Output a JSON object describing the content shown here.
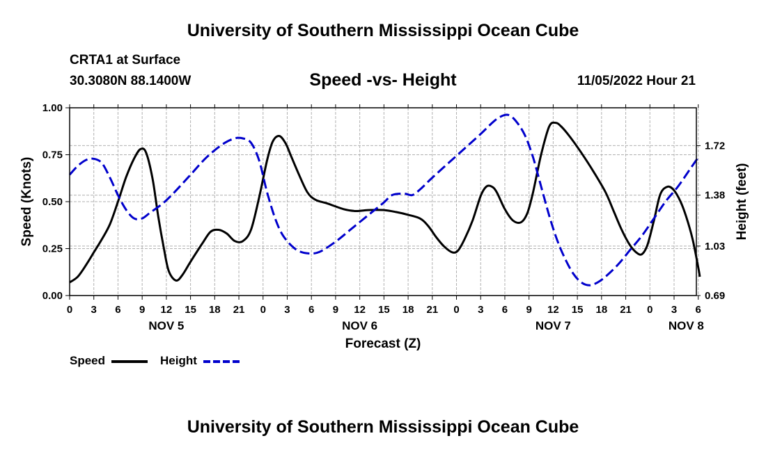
{
  "header": {
    "org_title": "University of Southern Mississippi Ocean Cube",
    "station": "CRTA1 at Surface",
    "coordinates": "30.3080N  88.1400W",
    "chart_title": "Speed -vs- Height",
    "datetime": "11/05/2022 Hour 21"
  },
  "footer": {
    "org_title": "University of Southern Mississippi Ocean Cube"
  },
  "legend": {
    "speed_label": "Speed",
    "height_label": "Height"
  },
  "colors": {
    "speed": "#000000",
    "height": "#0000cc",
    "grid": "#b0b0b0"
  },
  "chart_data": {
    "type": "line",
    "title": "Speed -vs- Height",
    "xlabel": "Forecast (Z)",
    "ylabel": "Speed (Knots)",
    "y2label": "Height (feet)",
    "x_range_hours": [
      0,
      81
    ],
    "x_ticks": [
      {
        "hour": 0,
        "label": "0"
      },
      {
        "hour": 3,
        "label": "3"
      },
      {
        "hour": 6,
        "label": "6"
      },
      {
        "hour": 9,
        "label": "9"
      },
      {
        "hour": 12,
        "label": "12"
      },
      {
        "hour": 15,
        "label": "15"
      },
      {
        "hour": 18,
        "label": "18"
      },
      {
        "hour": 21,
        "label": "21"
      },
      {
        "hour": 24,
        "label": "0"
      },
      {
        "hour": 27,
        "label": "3"
      },
      {
        "hour": 30,
        "label": "6"
      },
      {
        "hour": 33,
        "label": "9"
      },
      {
        "hour": 36,
        "label": "12"
      },
      {
        "hour": 39,
        "label": "15"
      },
      {
        "hour": 42,
        "label": "18"
      },
      {
        "hour": 45,
        "label": "21"
      },
      {
        "hour": 48,
        "label": "0"
      },
      {
        "hour": 51,
        "label": "3"
      },
      {
        "hour": 54,
        "label": "6"
      },
      {
        "hour": 57,
        "label": "9"
      },
      {
        "hour": 60,
        "label": "12"
      },
      {
        "hour": 63,
        "label": "15"
      },
      {
        "hour": 66,
        "label": "18"
      },
      {
        "hour": 69,
        "label": "21"
      },
      {
        "hour": 72,
        "label": "0"
      },
      {
        "hour": 75,
        "label": "3"
      },
      {
        "hour": 78,
        "label": "6"
      }
    ],
    "day_labels": [
      {
        "hour": 12,
        "label": "NOV 5"
      },
      {
        "hour": 36,
        "label": "NOV 6"
      },
      {
        "hour": 60,
        "label": "NOV 7"
      },
      {
        "hour": 76.5,
        "label": "NOV 8"
      }
    ],
    "ylim": [
      0,
      1.0
    ],
    "y_ticks": [
      "0.00",
      "0.25",
      "0.50",
      "0.75",
      "1.00"
    ],
    "y2lim": [
      0.69,
      1.98
    ],
    "y2_ticks": [
      "0.69",
      "1.03",
      "1.38",
      "1.72"
    ],
    "grid": true,
    "series": [
      {
        "name": "Speed",
        "axis": "left",
        "style": "solid",
        "points": [
          [
            0,
            0.07
          ],
          [
            1,
            0.1
          ],
          [
            2,
            0.16
          ],
          [
            3,
            0.23
          ],
          [
            4,
            0.3
          ],
          [
            5,
            0.38
          ],
          [
            6,
            0.5
          ],
          [
            7,
            0.63
          ],
          [
            8,
            0.73
          ],
          [
            8.8,
            0.78
          ],
          [
            9.5,
            0.76
          ],
          [
            10.3,
            0.62
          ],
          [
            11,
            0.42
          ],
          [
            11.7,
            0.25
          ],
          [
            12.3,
            0.13
          ],
          [
            13.2,
            0.08
          ],
          [
            14,
            0.11
          ],
          [
            15,
            0.18
          ],
          [
            16.5,
            0.28
          ],
          [
            17.5,
            0.34
          ],
          [
            18.5,
            0.35
          ],
          [
            19.5,
            0.33
          ],
          [
            20.5,
            0.29
          ],
          [
            21.5,
            0.29
          ],
          [
            22.5,
            0.35
          ],
          [
            23.5,
            0.52
          ],
          [
            24.5,
            0.72
          ],
          [
            25.2,
            0.82
          ],
          [
            26,
            0.85
          ],
          [
            26.8,
            0.81
          ],
          [
            27.5,
            0.74
          ],
          [
            28.5,
            0.64
          ],
          [
            29.5,
            0.55
          ],
          [
            30.5,
            0.51
          ],
          [
            32,
            0.49
          ],
          [
            34,
            0.46
          ],
          [
            35.5,
            0.45
          ],
          [
            37,
            0.455
          ],
          [
            39,
            0.455
          ],
          [
            40.5,
            0.445
          ],
          [
            42,
            0.43
          ],
          [
            43.5,
            0.41
          ],
          [
            44.5,
            0.37
          ],
          [
            45.5,
            0.31
          ],
          [
            46.5,
            0.26
          ],
          [
            47.5,
            0.23
          ],
          [
            48.2,
            0.24
          ],
          [
            49,
            0.3
          ],
          [
            50,
            0.4
          ],
          [
            51,
            0.53
          ],
          [
            51.7,
            0.58
          ],
          [
            52.4,
            0.58
          ],
          [
            53,
            0.55
          ],
          [
            54,
            0.46
          ],
          [
            55,
            0.4
          ],
          [
            56,
            0.39
          ],
          [
            56.8,
            0.44
          ],
          [
            57.5,
            0.55
          ],
          [
            58.5,
            0.75
          ],
          [
            59.5,
            0.9
          ],
          [
            60.3,
            0.92
          ],
          [
            61,
            0.9
          ],
          [
            62,
            0.85
          ],
          [
            63.5,
            0.76
          ],
          [
            65,
            0.66
          ],
          [
            66.5,
            0.55
          ],
          [
            67.5,
            0.45
          ],
          [
            68.5,
            0.35
          ],
          [
            69.5,
            0.27
          ],
          [
            70.3,
            0.23
          ],
          [
            71,
            0.22
          ],
          [
            71.7,
            0.27
          ],
          [
            72.5,
            0.4
          ],
          [
            73.3,
            0.54
          ],
          [
            74.2,
            0.58
          ],
          [
            75,
            0.56
          ],
          [
            75.8,
            0.5
          ],
          [
            76.5,
            0.42
          ],
          [
            77.3,
            0.3
          ],
          [
            78,
            0.15
          ],
          [
            78.2,
            0.1
          ]
        ]
      },
      {
        "name": "Height",
        "axis": "right",
        "style": "dashed",
        "points": [
          [
            0,
            1.52
          ],
          [
            1,
            1.58
          ],
          [
            2,
            1.62
          ],
          [
            3,
            1.63
          ],
          [
            4,
            1.6
          ],
          [
            5,
            1.5
          ],
          [
            6,
            1.38
          ],
          [
            7,
            1.28
          ],
          [
            8,
            1.22
          ],
          [
            9,
            1.22
          ],
          [
            10,
            1.26
          ],
          [
            11.5,
            1.32
          ],
          [
            13,
            1.4
          ],
          [
            15,
            1.52
          ],
          [
            17,
            1.64
          ],
          [
            19,
            1.73
          ],
          [
            20.5,
            1.77
          ],
          [
            21.5,
            1.77
          ],
          [
            22.5,
            1.74
          ],
          [
            23.5,
            1.62
          ],
          [
            24.5,
            1.4
          ],
          [
            25.5,
            1.22
          ],
          [
            26.5,
            1.1
          ],
          [
            28,
            1.01
          ],
          [
            29.5,
            0.98
          ],
          [
            31,
            0.99
          ],
          [
            33,
            1.06
          ],
          [
            35,
            1.15
          ],
          [
            37,
            1.24
          ],
          [
            39,
            1.33
          ],
          [
            40,
            1.38
          ],
          [
            41.5,
            1.39
          ],
          [
            42.5,
            1.38
          ],
          [
            43.5,
            1.42
          ],
          [
            45,
            1.5
          ],
          [
            47,
            1.6
          ],
          [
            49,
            1.7
          ],
          [
            51,
            1.8
          ],
          [
            52.5,
            1.88
          ],
          [
            53.5,
            1.92
          ],
          [
            54.5,
            1.93
          ],
          [
            55.5,
            1.88
          ],
          [
            56.5,
            1.79
          ],
          [
            57.5,
            1.64
          ],
          [
            58.5,
            1.44
          ],
          [
            59.5,
            1.24
          ],
          [
            60.5,
            1.07
          ],
          [
            61.5,
            0.94
          ],
          [
            62.5,
            0.84
          ],
          [
            63.5,
            0.78
          ],
          [
            64.5,
            0.76
          ],
          [
            65.5,
            0.78
          ],
          [
            66.5,
            0.82
          ],
          [
            68,
            0.9
          ],
          [
            69.5,
            1.0
          ],
          [
            71,
            1.1
          ],
          [
            72.5,
            1.22
          ],
          [
            74,
            1.34
          ],
          [
            75.5,
            1.44
          ],
          [
            77,
            1.56
          ],
          [
            78,
            1.64
          ]
        ]
      }
    ]
  }
}
